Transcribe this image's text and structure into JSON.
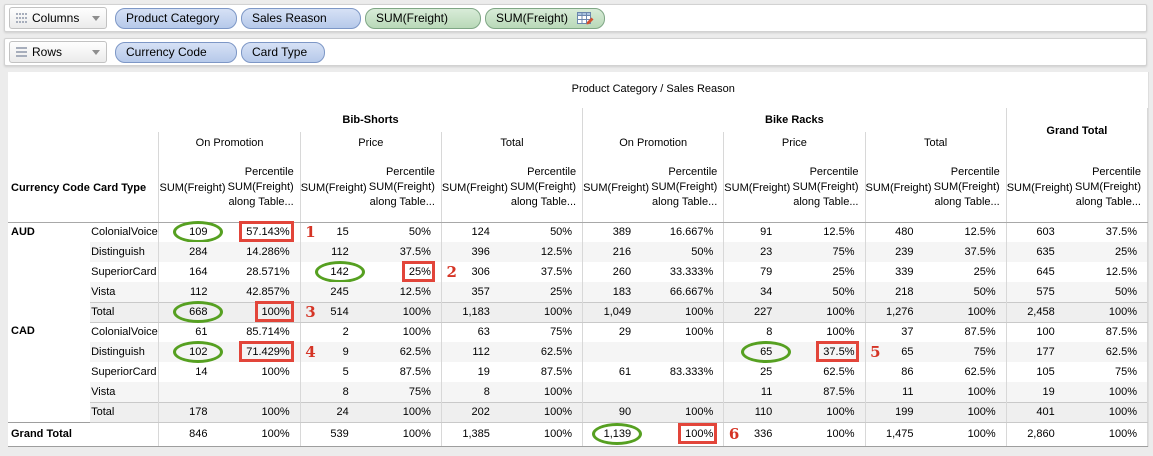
{
  "shelves": {
    "columns": {
      "label": "Columns",
      "icon": "grid-dots-icon",
      "dropdown_icon": "chevron-down-icon",
      "pills": [
        {
          "label": "Product Category",
          "type": "dimension"
        },
        {
          "label": "Sales Reason",
          "type": "dimension"
        },
        {
          "label": "SUM(Freight)",
          "type": "measure"
        },
        {
          "label": "SUM(Freight)",
          "type": "measure",
          "icon": "table-calc-icon"
        }
      ]
    },
    "rows": {
      "label": "Rows",
      "icon": "list-lines-icon",
      "dropdown_icon": "chevron-down-icon",
      "pills": [
        {
          "label": "Currency Code",
          "type": "dimension"
        },
        {
          "label": "Card Type",
          "type": "dimension"
        }
      ]
    }
  },
  "table": {
    "title": "Product Category / Sales Reason",
    "row_headers": [
      "Currency Code",
      "Card Type"
    ],
    "categories": [
      {
        "label": "Bib-Shorts",
        "reasons": [
          "On Promotion",
          "Price",
          "Total"
        ]
      },
      {
        "label": "Bike Racks",
        "reasons": [
          "On Promotion",
          "Price",
          "Total"
        ]
      },
      {
        "label": "Grand Total",
        "reasons": []
      }
    ],
    "measure_header": {
      "top": "Percentile",
      "name": "SUM(Freight)",
      "bottom": "along Table..."
    },
    "groups": [
      {
        "currency": "AUD",
        "rows": [
          {
            "label": "ColonialVoice",
            "values": [
              "109",
              "57.143%",
              "15",
              "50%",
              "124",
              "50%",
              "389",
              "16.667%",
              "91",
              "12.5%",
              "480",
              "12.5%",
              "603",
              "37.5%"
            ]
          },
          {
            "label": "Distinguish",
            "values": [
              "284",
              "14.286%",
              "112",
              "37.5%",
              "396",
              "12.5%",
              "216",
              "50%",
              "23",
              "75%",
              "239",
              "37.5%",
              "635",
              "25%"
            ]
          },
          {
            "label": "SuperiorCard",
            "values": [
              "164",
              "28.571%",
              "142",
              "25%",
              "306",
              "37.5%",
              "260",
              "33.333%",
              "79",
              "25%",
              "339",
              "25%",
              "645",
              "12.5%"
            ]
          },
          {
            "label": "Vista",
            "values": [
              "112",
              "42.857%",
              "245",
              "12.5%",
              "357",
              "25%",
              "183",
              "66.667%",
              "34",
              "50%",
              "218",
              "50%",
              "575",
              "50%"
            ]
          },
          {
            "label": "Total",
            "values": [
              "668",
              "100%",
              "514",
              "100%",
              "1,183",
              "100%",
              "1,049",
              "100%",
              "227",
              "100%",
              "1,276",
              "100%",
              "2,458",
              "100%"
            ]
          }
        ]
      },
      {
        "currency": "CAD",
        "rows": [
          {
            "label": "ColonialVoice",
            "values": [
              "61",
              "85.714%",
              "2",
              "100%",
              "63",
              "75%",
              "29",
              "100%",
              "8",
              "100%",
              "37",
              "87.5%",
              "100",
              "87.5%"
            ]
          },
          {
            "label": "Distinguish",
            "values": [
              "102",
              "71.429%",
              "9",
              "62.5%",
              "112",
              "62.5%",
              "",
              "",
              "65",
              "37.5%",
              "65",
              "75%",
              "177",
              "62.5%"
            ]
          },
          {
            "label": "SuperiorCard",
            "values": [
              "14",
              "100%",
              "5",
              "87.5%",
              "19",
              "87.5%",
              "61",
              "83.333%",
              "25",
              "62.5%",
              "86",
              "62.5%",
              "105",
              "75%"
            ]
          },
          {
            "label": "Vista",
            "values": [
              "",
              "",
              "8",
              "75%",
              "8",
              "100%",
              "",
              "",
              "11",
              "87.5%",
              "11",
              "100%",
              "19",
              "100%"
            ]
          },
          {
            "label": "Total",
            "values": [
              "178",
              "100%",
              "24",
              "100%",
              "202",
              "100%",
              "90",
              "100%",
              "110",
              "100%",
              "199",
              "100%",
              "401",
              "100%"
            ]
          }
        ]
      }
    ],
    "grand_total": {
      "label": "Grand Total",
      "values": [
        "846",
        "100%",
        "539",
        "100%",
        "1,385",
        "100%",
        "1,139",
        "100%",
        "336",
        "100%",
        "1,475",
        "100%",
        "2,860",
        "100%"
      ]
    }
  },
  "annotations": [
    {
      "number": "1",
      "group": 0,
      "row": 0,
      "circle_col": 0,
      "box_col": 1
    },
    {
      "number": "2",
      "group": 0,
      "row": 2,
      "circle_col": 2,
      "box_col": 3
    },
    {
      "number": "3",
      "group": 0,
      "row": 4,
      "circle_col": 0,
      "box_col": 1
    },
    {
      "number": "4",
      "group": 1,
      "row": 1,
      "circle_col": 0,
      "box_col": 1
    },
    {
      "number": "5",
      "group": 1,
      "row": 1,
      "circle_col": 8,
      "box_col": 9
    },
    {
      "number": "6",
      "group": 2,
      "row": 0,
      "circle_col": 6,
      "box_col": 7
    }
  ],
  "colors": {
    "pill_dimension": "#b6c9ea",
    "pill_measure": "#b9d9b8",
    "annotation_green": "#56a021",
    "annotation_red": "#e2453a",
    "band_bg": "#f5f5f5",
    "total_row_bg": "#efefef"
  }
}
